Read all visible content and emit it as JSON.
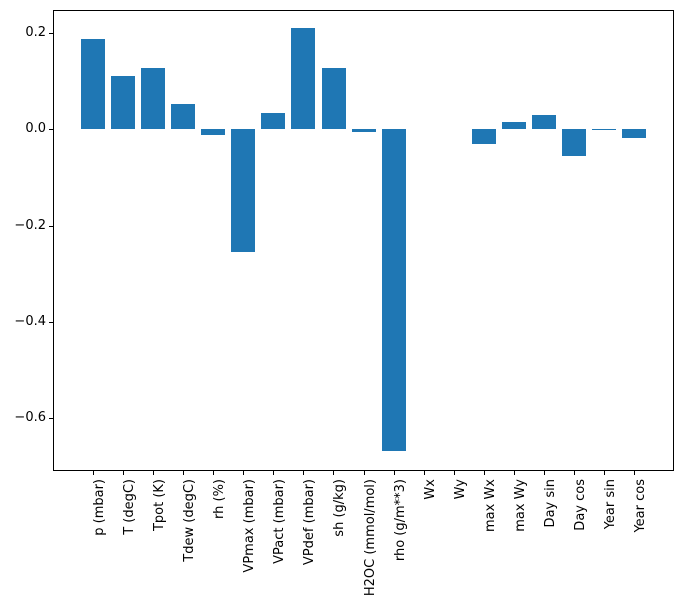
{
  "chart_data": {
    "type": "bar",
    "title": "",
    "xlabel": "",
    "ylabel": "",
    "categories": [
      "p (mbar)",
      "T (degC)",
      "Tpot (K)",
      "Tdew (degC)",
      "rh (%)",
      "VPmax (mbar)",
      "VPact (mbar)",
      "VPdef (mbar)",
      "sh (g/kg)",
      "H2OC (mmol/mol)",
      "rho (g/m**3)",
      "Wx",
      "Wy",
      "max Wx",
      "max Wy",
      "Day sin",
      "Day cos",
      "Year sin",
      "Year cos"
    ],
    "values": [
      0.186,
      0.111,
      0.127,
      0.053,
      -0.012,
      -0.256,
      0.034,
      0.209,
      0.127,
      -0.007,
      -0.668,
      0.0,
      0.0,
      -0.031,
      0.015,
      0.03,
      -0.055,
      0.001,
      -0.019
    ],
    "yticks": [
      0.2,
      0.0,
      -0.2,
      -0.4,
      -0.6
    ],
    "ytick_labels": [
      "0.2",
      "0.0",
      "−0.2",
      "−0.4",
      "−0.6"
    ],
    "ylim": [
      -0.709,
      0.247
    ],
    "xlim": [
      -1.34,
      19.34
    ],
    "bar_rel_width": 0.8,
    "xtick_rotation_deg": 90,
    "grid": false,
    "legend_position": "none",
    "bar_color": "#1f77b4",
    "spine_color": "#000000",
    "text_color": "#000000",
    "background_color": "#ffffff"
  }
}
